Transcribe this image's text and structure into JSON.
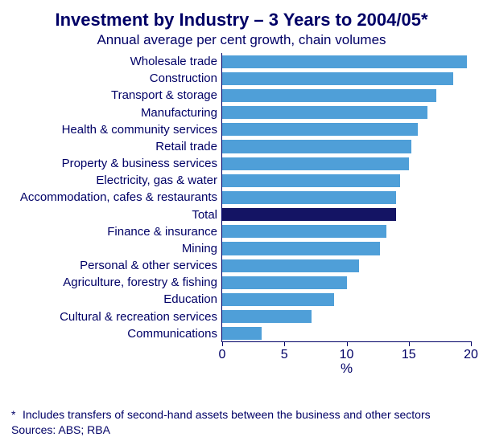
{
  "title": "Investment by Industry – 3 Years to 2004/05*",
  "subtitle": "Annual average per cent growth, chain volumes",
  "chart": {
    "type": "bar-horizontal",
    "xlim": [
      0,
      20
    ],
    "xticks": [
      0,
      5,
      10,
      15,
      20
    ],
    "xlabel": "%",
    "bar_color": "#4f9fd8",
    "highlight_color": "#141464",
    "background_color": "#ffffff",
    "axis_color": "#000066",
    "label_fontsize": 15,
    "tick_fontsize": 16,
    "categories": [
      {
        "label": "Wholesale trade",
        "value": 19.7,
        "highlight": false
      },
      {
        "label": "Construction",
        "value": 18.6,
        "highlight": false
      },
      {
        "label": "Transport & storage",
        "value": 17.2,
        "highlight": false
      },
      {
        "label": "Manufacturing",
        "value": 16.5,
        "highlight": false
      },
      {
        "label": "Health & community services",
        "value": 15.7,
        "highlight": false
      },
      {
        "label": "Retail trade",
        "value": 15.2,
        "highlight": false
      },
      {
        "label": "Property & business services",
        "value": 15.0,
        "highlight": false
      },
      {
        "label": "Electricity, gas & water",
        "value": 14.3,
        "highlight": false
      },
      {
        "label": "Accommodation, cafes & restaurants",
        "value": 14.0,
        "highlight": false
      },
      {
        "label": "Total",
        "value": 14.0,
        "highlight": true
      },
      {
        "label": "Finance & insurance",
        "value": 13.2,
        "highlight": false
      },
      {
        "label": "Mining",
        "value": 12.7,
        "highlight": false
      },
      {
        "label": "Personal & other services",
        "value": 11.0,
        "highlight": false
      },
      {
        "label": "Agriculture, forestry & fishing",
        "value": 10.0,
        "highlight": false
      },
      {
        "label": "Education",
        "value": 9.0,
        "highlight": false
      },
      {
        "label": "Cultural & recreation services",
        "value": 7.2,
        "highlight": false
      },
      {
        "label": "Communications",
        "value": 3.2,
        "highlight": false
      }
    ]
  },
  "footnote_marker": "*",
  "footnote": "Includes transfers of second-hand assets between the business and other sectors",
  "sources_label": "Sources: ABS; RBA"
}
